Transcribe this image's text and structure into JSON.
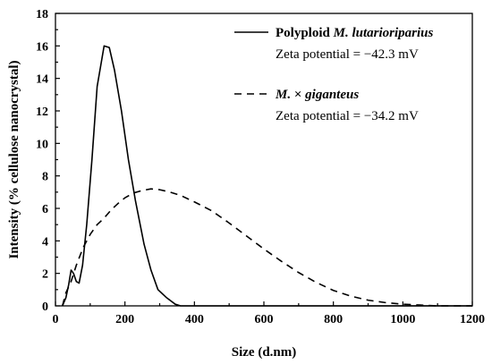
{
  "chart_data": {
    "type": "line",
    "title": "",
    "xlabel": "Size (d.nm)",
    "ylabel": "Intensity (% cellulose nanocrystal)",
    "xlim": [
      0,
      1200
    ],
    "ylim": [
      0,
      18
    ],
    "xticks": [
      "0",
      "200",
      "400",
      "600",
      "800",
      "1000",
      "1200"
    ],
    "yticks": [
      "0",
      "2",
      "4",
      "6",
      "8",
      "10",
      "12",
      "14",
      "16",
      "18"
    ],
    "grid": false,
    "legend_position": "top-right",
    "series": [
      {
        "name_parts": [
          {
            "text": "Polyploid ",
            "italic": false
          },
          {
            "text": "M. lutarioriparius",
            "italic": true
          }
        ],
        "note": "Zeta potential = −42.3 mV",
        "line_style": "solid",
        "color": "#000000",
        "points": [
          [
            20,
            0
          ],
          [
            30,
            0.5
          ],
          [
            38,
            1.3
          ],
          [
            45,
            2.2
          ],
          [
            52,
            2.0
          ],
          [
            60,
            1.5
          ],
          [
            68,
            1.4
          ],
          [
            78,
            2.5
          ],
          [
            90,
            5.0
          ],
          [
            105,
            9.0
          ],
          [
            120,
            13.5
          ],
          [
            140,
            16.0
          ],
          [
            155,
            15.9
          ],
          [
            170,
            14.5
          ],
          [
            190,
            12.0
          ],
          [
            210,
            9.0
          ],
          [
            230,
            6.5
          ],
          [
            255,
            3.8
          ],
          [
            275,
            2.2
          ],
          [
            295,
            1.0
          ],
          [
            320,
            0.5
          ],
          [
            345,
            0.1
          ],
          [
            360,
            0
          ],
          [
            1200,
            0
          ]
        ]
      },
      {
        "name_parts": [
          {
            "text": "M.",
            "italic": true
          },
          {
            "text": " × ",
            "italic": false
          },
          {
            "text": "giganteus",
            "italic": true
          }
        ],
        "note": "Zeta potential = −34.2 mV",
        "line_style": "dashed",
        "color": "#000000",
        "points": [
          [
            20,
            0
          ],
          [
            30,
            0.8
          ],
          [
            45,
            1.5
          ],
          [
            60,
            2.5
          ],
          [
            80,
            3.6
          ],
          [
            100,
            4.4
          ],
          [
            120,
            5.0
          ],
          [
            140,
            5.4
          ],
          [
            160,
            5.9
          ],
          [
            180,
            6.3
          ],
          [
            200,
            6.65
          ],
          [
            225,
            6.95
          ],
          [
            250,
            7.1
          ],
          [
            275,
            7.2
          ],
          [
            300,
            7.15
          ],
          [
            330,
            7.0
          ],
          [
            360,
            6.8
          ],
          [
            400,
            6.4
          ],
          [
            450,
            5.85
          ],
          [
            500,
            5.1
          ],
          [
            550,
            4.3
          ],
          [
            600,
            3.5
          ],
          [
            650,
            2.75
          ],
          [
            700,
            2.05
          ],
          [
            750,
            1.45
          ],
          [
            800,
            0.95
          ],
          [
            850,
            0.6
          ],
          [
            900,
            0.35
          ],
          [
            950,
            0.2
          ],
          [
            1000,
            0.1
          ],
          [
            1050,
            0.05
          ],
          [
            1100,
            0
          ],
          [
            1200,
            0
          ]
        ]
      }
    ]
  }
}
